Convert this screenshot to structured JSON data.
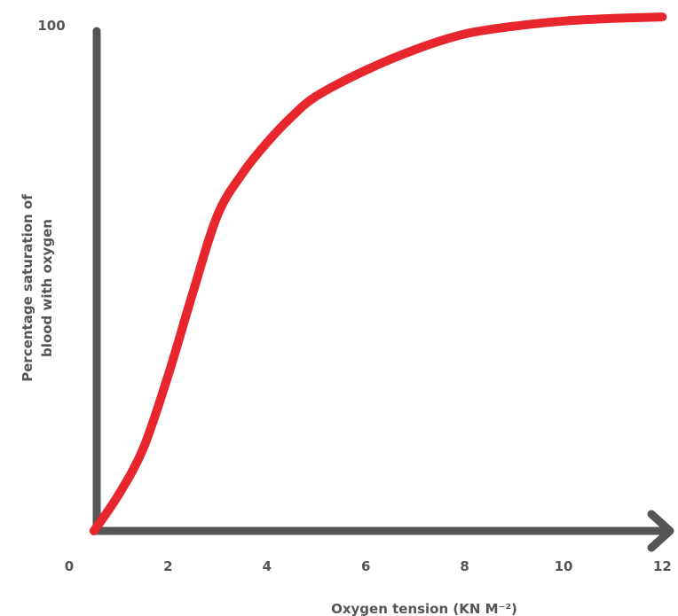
{
  "chart_data": {
    "type": "line",
    "title": "",
    "xlabel": "Oxygen tension (KN M⁻²)",
    "ylabel_lines": [
      "Percentage saturation of",
      "blood with oxygen"
    ],
    "x_ticks": [
      "0",
      "2",
      "4",
      "6",
      "8",
      "10",
      "12"
    ],
    "y_ticks": [
      "100"
    ],
    "xlim": [
      0,
      12
    ],
    "ylim": [
      0,
      100
    ],
    "grid": false,
    "series": [
      {
        "x": [
          0.5,
          1.0,
          1.5,
          2.0,
          2.5,
          3.0,
          3.5,
          4.0,
          4.5,
          5.0,
          6.0,
          7.0,
          8.0,
          9.0,
          10.0,
          11.0,
          12.0
        ],
        "y": [
          0,
          7,
          16,
          30,
          46,
          61,
          69,
          75,
          80,
          84,
          89,
          93,
          96,
          97.5,
          98.5,
          99,
          99.3
        ]
      }
    ],
    "colors": {
      "curve": "#e8262d",
      "axis": "#555555"
    }
  }
}
